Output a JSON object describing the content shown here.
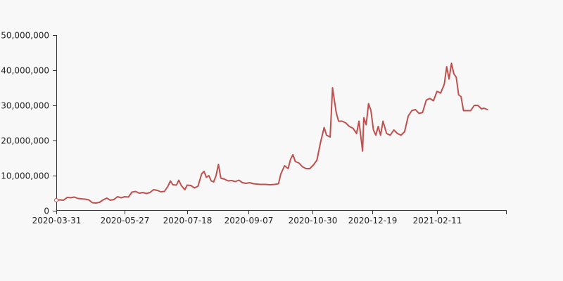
{
  "chart_data": {
    "type": "line",
    "title": "",
    "xlabel": "",
    "ylabel": "",
    "x_ticks": [
      "2020-03-31",
      "2020-05-27",
      "2020-07-18",
      "2020-09-07",
      "2020-10-30",
      "2020-12-19",
      "2021-02-11"
    ],
    "y_ticks": [
      "0",
      "10,000,000",
      "20,000,000",
      "30,000,000",
      "40,000,000",
      "50,000,000"
    ],
    "x_range": [
      "2020-03-31",
      "2021-04-10"
    ],
    "ylim": [
      0,
      50000000
    ],
    "grid": false,
    "legend": "none",
    "series": [
      {
        "color": "#c0504d",
        "points": [
          [
            "2020-03-31",
            3000000
          ],
          [
            "2020-04-03",
            3100000
          ],
          [
            "2020-04-06",
            3000000
          ],
          [
            "2020-04-09",
            3800000
          ],
          [
            "2020-04-12",
            3700000
          ],
          [
            "2020-04-15",
            3900000
          ],
          [
            "2020-04-18",
            3500000
          ],
          [
            "2020-04-21",
            3400000
          ],
          [
            "2020-04-24",
            3300000
          ],
          [
            "2020-04-27",
            3100000
          ],
          [
            "2020-04-30",
            2300000
          ],
          [
            "2020-05-03",
            2200000
          ],
          [
            "2020-05-06",
            2400000
          ],
          [
            "2020-05-09",
            3100000
          ],
          [
            "2020-05-12",
            3600000
          ],
          [
            "2020-05-15",
            3000000
          ],
          [
            "2020-05-18",
            3200000
          ],
          [
            "2020-05-21",
            4000000
          ],
          [
            "2020-05-24",
            3700000
          ],
          [
            "2020-05-27",
            4000000
          ],
          [
            "2020-05-30",
            3900000
          ],
          [
            "2020-06-02",
            5300000
          ],
          [
            "2020-06-05",
            5500000
          ],
          [
            "2020-06-08",
            5000000
          ],
          [
            "2020-06-11",
            5200000
          ],
          [
            "2020-06-14",
            4900000
          ],
          [
            "2020-06-17",
            5200000
          ],
          [
            "2020-06-20",
            6000000
          ],
          [
            "2020-06-23",
            5800000
          ],
          [
            "2020-06-26",
            5400000
          ],
          [
            "2020-06-29",
            5500000
          ],
          [
            "2020-07-02",
            7000000
          ],
          [
            "2020-07-04",
            8500000
          ],
          [
            "2020-07-06",
            7400000
          ],
          [
            "2020-07-09",
            7300000
          ],
          [
            "2020-07-11",
            8700000
          ],
          [
            "2020-07-13",
            7200000
          ],
          [
            "2020-07-16",
            6000000
          ],
          [
            "2020-07-18",
            7300000
          ],
          [
            "2020-07-21",
            7200000
          ],
          [
            "2020-07-24",
            6500000
          ],
          [
            "2020-07-27",
            7000000
          ],
          [
            "2020-07-30",
            10500000
          ],
          [
            "2020-08-01",
            11200000
          ],
          [
            "2020-08-03",
            9500000
          ],
          [
            "2020-08-05",
            10000000
          ],
          [
            "2020-08-07",
            8500000
          ],
          [
            "2020-08-09",
            8200000
          ],
          [
            "2020-08-11",
            10000000
          ],
          [
            "2020-08-13",
            13200000
          ],
          [
            "2020-08-15",
            9300000
          ],
          [
            "2020-08-18",
            9000000
          ],
          [
            "2020-08-21",
            8500000
          ],
          [
            "2020-08-24",
            8600000
          ],
          [
            "2020-08-27",
            8300000
          ],
          [
            "2020-08-30",
            8700000
          ],
          [
            "2020-09-02",
            8000000
          ],
          [
            "2020-09-05",
            7800000
          ],
          [
            "2020-09-08",
            8000000
          ],
          [
            "2020-09-11",
            7700000
          ],
          [
            "2020-09-14",
            7600000
          ],
          [
            "2020-09-17",
            7500000
          ],
          [
            "2020-09-21",
            7500000
          ],
          [
            "2020-09-25",
            7400000
          ],
          [
            "2020-09-29",
            7500000
          ],
          [
            "2020-10-02",
            7700000
          ],
          [
            "2020-10-04",
            10500000
          ],
          [
            "2020-10-07",
            12800000
          ],
          [
            "2020-10-10",
            12000000
          ],
          [
            "2020-10-12",
            14600000
          ],
          [
            "2020-10-14",
            16000000
          ],
          [
            "2020-10-16",
            14000000
          ],
          [
            "2020-10-19",
            13600000
          ],
          [
            "2020-10-22",
            12500000
          ],
          [
            "2020-10-25",
            12000000
          ],
          [
            "2020-10-28",
            12000000
          ],
          [
            "2020-10-31",
            13000000
          ],
          [
            "2020-11-03",
            14400000
          ],
          [
            "2020-11-06",
            19500000
          ],
          [
            "2020-11-09",
            23700000
          ],
          [
            "2020-11-11",
            21500000
          ],
          [
            "2020-11-14",
            21000000
          ],
          [
            "2020-11-16",
            35000000
          ],
          [
            "2020-11-19",
            28000000
          ],
          [
            "2020-11-21",
            25500000
          ],
          [
            "2020-11-24",
            25500000
          ],
          [
            "2020-11-27",
            25000000
          ],
          [
            "2020-11-30",
            24000000
          ],
          [
            "2020-12-03",
            23500000
          ],
          [
            "2020-12-06",
            22000000
          ],
          [
            "2020-12-08",
            25500000
          ],
          [
            "2020-12-11",
            17000000
          ],
          [
            "2020-12-12",
            26500000
          ],
          [
            "2020-12-14",
            24500000
          ],
          [
            "2020-12-16",
            30500000
          ],
          [
            "2020-12-18",
            28500000
          ],
          [
            "2020-12-20",
            23000000
          ],
          [
            "2020-12-22",
            21500000
          ],
          [
            "2020-12-24",
            24000000
          ],
          [
            "2020-12-26",
            21500000
          ],
          [
            "2020-12-28",
            25500000
          ],
          [
            "2020-12-31",
            22000000
          ],
          [
            "2021-01-03",
            21500000
          ],
          [
            "2021-01-06",
            23000000
          ],
          [
            "2021-01-09",
            22000000
          ],
          [
            "2021-01-12",
            21500000
          ],
          [
            "2021-01-15",
            22500000
          ],
          [
            "2021-01-18",
            27000000
          ],
          [
            "2021-01-21",
            28500000
          ],
          [
            "2021-01-24",
            28800000
          ],
          [
            "2021-01-27",
            27700000
          ],
          [
            "2021-01-30",
            28000000
          ],
          [
            "2021-02-02",
            31500000
          ],
          [
            "2021-02-05",
            32000000
          ],
          [
            "2021-02-08",
            31300000
          ],
          [
            "2021-02-11",
            34000000
          ],
          [
            "2021-02-14",
            33500000
          ],
          [
            "2021-02-17",
            36000000
          ],
          [
            "2021-02-19",
            41000000
          ],
          [
            "2021-02-21",
            37500000
          ],
          [
            "2021-02-23",
            42000000
          ],
          [
            "2021-02-25",
            39000000
          ],
          [
            "2021-02-27",
            38000000
          ],
          [
            "2021-03-01",
            33000000
          ],
          [
            "2021-03-03",
            32500000
          ],
          [
            "2021-03-05",
            28500000
          ],
          [
            "2021-03-08",
            28500000
          ],
          [
            "2021-03-11",
            28500000
          ],
          [
            "2021-03-14",
            30000000
          ],
          [
            "2021-03-17",
            30000000
          ],
          [
            "2021-03-20",
            29000000
          ],
          [
            "2021-03-22",
            29200000
          ],
          [
            "2021-03-25",
            28800000
          ]
        ]
      }
    ]
  }
}
